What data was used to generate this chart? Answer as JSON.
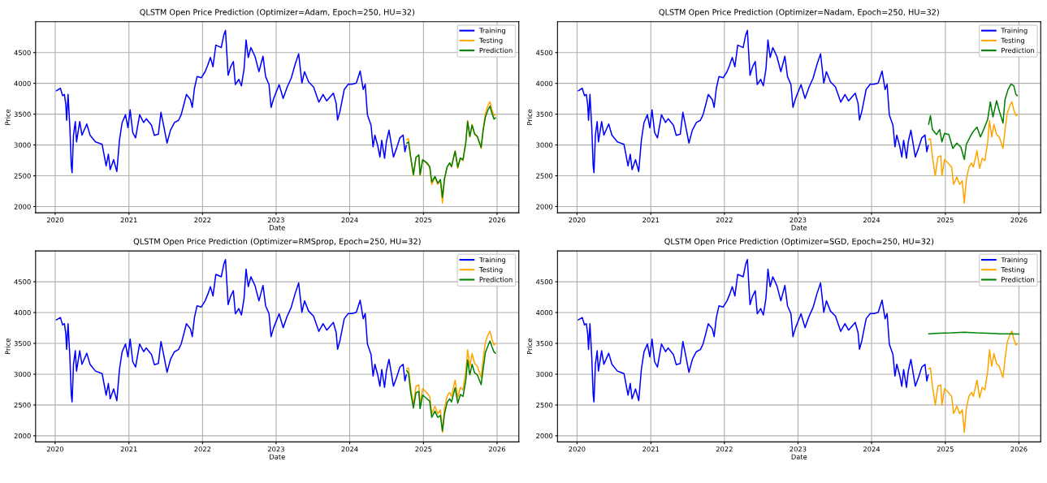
{
  "chart_data": [
    {
      "type": "line",
      "title": "QLSTM Open Price Prediction (Optimizer=Adam, Epoch=250, HU=32)",
      "xlabel": "Date",
      "ylabel": "Price",
      "xlim": [
        "2019-09-26",
        "2026-04-19"
      ],
      "ylim": [
        1900,
        5000
      ],
      "xticks": [
        {
          "value": "2020-01-01",
          "label": "2020"
        },
        {
          "value": "2021-01-01",
          "label": "2021"
        },
        {
          "value": "2022-01-01",
          "label": "2022"
        },
        {
          "value": "2023-01-01",
          "label": "2023"
        },
        {
          "value": "2024-01-01",
          "label": "2024"
        },
        {
          "value": "2025-01-01",
          "label": "2025"
        },
        {
          "value": "2026-01-01",
          "label": "2026"
        }
      ],
      "yticks": [
        2000,
        2500,
        3000,
        3500,
        4000,
        4500
      ],
      "grid": true,
      "legend": "top right",
      "series": [
        {
          "name": "Training",
          "color": "#0000ff",
          "x": [
            "2020-01-07",
            "2020-01-27",
            "2020-02-07",
            "2020-02-16",
            "2020-02-23",
            "2020-02-27",
            "2020-03-05",
            "2020-03-14",
            "2020-03-21",
            "2020-03-25",
            "2020-04-01",
            "2020-04-10",
            "2020-04-16",
            "2020-05-02",
            "2020-05-13",
            "2020-06-06",
            "2020-06-22",
            "2020-07-19",
            "2020-08-21",
            "2020-09-10",
            "2020-09-21",
            "2020-09-30",
            "2020-10-17",
            "2020-11-02",
            "2020-11-15",
            "2020-11-28",
            "2020-12-15",
            "2020-12-27",
            "2021-01-07",
            "2021-01-20",
            "2021-02-03",
            "2021-02-23",
            "2021-03-15",
            "2021-03-28",
            "2021-04-23",
            "2021-05-07",
            "2021-05-27",
            "2021-06-09",
            "2021-06-22",
            "2021-07-09",
            "2021-07-26",
            "2021-08-15",
            "2021-09-04",
            "2021-09-17",
            "2021-09-30",
            "2021-10-13",
            "2021-11-02",
            "2021-11-11",
            "2021-11-22",
            "2021-12-05",
            "2021-12-26",
            "2022-01-14",
            "2022-01-27",
            "2022-02-09",
            "2022-02-22",
            "2022-03-08",
            "2022-03-22",
            "2022-04-04",
            "2022-04-17",
            "2022-04-25",
            "2022-05-08",
            "2022-05-21",
            "2022-06-03",
            "2022-06-13",
            "2022-06-30",
            "2022-07-13",
            "2022-07-26",
            "2022-08-05",
            "2022-08-16",
            "2022-08-29",
            "2022-09-18",
            "2022-10-08",
            "2022-10-28",
            "2022-11-10",
            "2022-11-27",
            "2022-12-07",
            "2022-12-20",
            "2023-01-16",
            "2023-02-05",
            "2023-02-25",
            "2023-03-17",
            "2023-04-06",
            "2023-04-23",
            "2023-05-09",
            "2023-05-22",
            "2023-06-11",
            "2023-07-06",
            "2023-08-01",
            "2023-08-22",
            "2023-09-09",
            "2023-10-12",
            "2023-10-26",
            "2023-11-02",
            "2023-11-14",
            "2023-12-05",
            "2023-12-25",
            "2024-01-14",
            "2024-02-03",
            "2024-02-22",
            "2024-03-08",
            "2024-03-18",
            "2024-03-29",
            "2024-04-16",
            "2024-04-26",
            "2024-05-05",
            "2024-05-19",
            "2024-05-30",
            "2024-06-08",
            "2024-06-22",
            "2024-07-01",
            "2024-07-14",
            "2024-08-05",
            "2024-08-21",
            "2024-09-06",
            "2024-09-22",
            "2024-10-01",
            "2024-10-08"
          ],
          "values": [
            3880,
            3920,
            3800,
            3820,
            3650,
            3400,
            3820,
            3280,
            2660,
            2550,
            3160,
            3380,
            3050,
            3380,
            3160,
            3340,
            3160,
            3050,
            3010,
            2660,
            2850,
            2600,
            2760,
            2570,
            3075,
            3360,
            3490,
            3280,
            3570,
            3200,
            3115,
            3490,
            3365,
            3425,
            3320,
            3155,
            3175,
            3530,
            3320,
            3030,
            3240,
            3365,
            3400,
            3490,
            3650,
            3820,
            3735,
            3610,
            3920,
            4110,
            4090,
            4190,
            4295,
            4420,
            4270,
            4620,
            4600,
            4580,
            4790,
            4860,
            4130,
            4270,
            4355,
            3980,
            4065,
            3960,
            4230,
            4705,
            4420,
            4580,
            4440,
            4190,
            4440,
            4110,
            3980,
            3610,
            3755,
            3980,
            3755,
            3940,
            4085,
            4315,
            4480,
            4005,
            4190,
            4025,
            3940,
            3695,
            3820,
            3715,
            3840,
            3675,
            3405,
            3550,
            3900,
            3985,
            3985,
            4005,
            4200,
            3900,
            3985,
            3490,
            3320,
            2970,
            3160,
            2990,
            2805,
            3075,
            2785,
            3050,
            3240,
            2805,
            2950,
            3115,
            3160,
            2890,
            2990
          ]
        },
        {
          "name": "Testing",
          "color": "#ffa500",
          "x": [
            "2024-10-10",
            "2024-10-19",
            "2024-10-29",
            "2024-11-12",
            "2024-11-25",
            "2024-12-09",
            "2024-12-15",
            "2024-12-28",
            "2025-01-15",
            "2025-02-01",
            "2025-02-11",
            "2025-02-27",
            "2025-03-13",
            "2025-03-26",
            "2025-04-05",
            "2025-04-15",
            "2025-04-28",
            "2025-05-11",
            "2025-05-20",
            "2025-06-07",
            "2025-06-20",
            "2025-07-03",
            "2025-07-16",
            "2025-07-30",
            "2025-08-08",
            "2025-08-19",
            "2025-08-30",
            "2025-09-12",
            "2025-09-25",
            "2025-10-14",
            "2025-10-24",
            "2025-11-04",
            "2025-11-17",
            "2025-11-27",
            "2025-12-06",
            "2025-12-17",
            "2025-12-24"
          ],
          "values": [
            3090,
            3100,
            2805,
            2500,
            2805,
            2825,
            2500,
            2765,
            2705,
            2640,
            2360,
            2480,
            2360,
            2420,
            2055,
            2440,
            2640,
            2705,
            2640,
            2905,
            2620,
            2785,
            2745,
            3050,
            3395,
            3130,
            3335,
            3170,
            3130,
            2945,
            3250,
            3515,
            3640,
            3700,
            3575,
            3475,
            3495
          ]
        },
        {
          "name": "Prediction",
          "color": "#008000",
          "x": [
            "2024-10-10",
            "2024-10-19",
            "2024-10-29",
            "2024-11-12",
            "2024-11-25",
            "2024-12-09",
            "2024-12-15",
            "2024-12-28",
            "2025-01-15",
            "2025-02-01",
            "2025-02-11",
            "2025-02-27",
            "2025-03-13",
            "2025-03-26",
            "2025-04-05",
            "2025-04-15",
            "2025-04-28",
            "2025-05-11",
            "2025-05-20",
            "2025-06-07",
            "2025-06-20",
            "2025-07-03",
            "2025-07-16",
            "2025-07-30",
            "2025-08-08",
            "2025-08-19",
            "2025-08-30",
            "2025-09-12",
            "2025-09-25",
            "2025-10-14",
            "2025-10-24",
            "2025-11-04",
            "2025-11-17",
            "2025-11-27",
            "2025-12-06",
            "2025-12-17",
            "2025-12-24"
          ],
          "values": [
            3030,
            3050,
            2820,
            2520,
            2800,
            2840,
            2520,
            2760,
            2720,
            2650,
            2400,
            2490,
            2380,
            2440,
            2150,
            2450,
            2640,
            2710,
            2650,
            2900,
            2640,
            2790,
            2760,
            3040,
            3380,
            3140,
            3320,
            3180,
            3140,
            2960,
            3240,
            3450,
            3570,
            3630,
            3520,
            3420,
            3440
          ]
        }
      ]
    },
    {
      "type": "line",
      "title": "QLSTM Open Price Prediction (Optimizer=Nadam, Epoch=250, HU=32)",
      "xlabel": "Date",
      "ylabel": "Price",
      "xlim": [
        "2019-09-26",
        "2026-04-19"
      ],
      "ylim": [
        1900,
        5000
      ],
      "xticks": [
        {
          "value": "2020-01-01",
          "label": "2020"
        },
        {
          "value": "2021-01-01",
          "label": "2021"
        },
        {
          "value": "2022-01-01",
          "label": "2022"
        },
        {
          "value": "2023-01-01",
          "label": "2023"
        },
        {
          "value": "2024-01-01",
          "label": "2024"
        },
        {
          "value": "2025-01-01",
          "label": "2025"
        },
        {
          "value": "2026-01-01",
          "label": "2026"
        }
      ],
      "yticks": [
        2000,
        2500,
        3000,
        3500,
        4000,
        4500
      ],
      "grid": true,
      "legend": "top right",
      "series": [
        {
          "name": "Training",
          "color": "#0000ff",
          "x": [
            "2020-01-07",
            "2020-01-27",
            "2020-02-07",
            "2020-02-16",
            "2020-02-23",
            "2020-02-27",
            "2020-03-05",
            "2020-03-14",
            "2020-03-21",
            "2020-03-25",
            "2020-04-01",
            "2020-04-10",
            "2020-04-16",
            "2020-05-02",
            "2020-05-13",
            "2020-06-06",
            "2020-06-22",
            "2020-07-19",
            "2020-08-21",
            "2020-09-10",
            "2020-09-21",
            "2020-09-30",
            "2020-10-17",
            "2020-11-02",
            "2020-11-15",
            "2020-11-28",
            "2020-12-15",
            "2020-12-27",
            "2021-01-07",
            "2021-01-20",
            "2021-02-03",
            "2021-02-23",
            "2021-03-15",
            "2021-03-28",
            "2021-04-23",
            "2021-05-07",
            "2021-05-27",
            "2021-06-09",
            "2021-06-22",
            "2021-07-09",
            "2021-07-26",
            "2021-08-15",
            "2021-09-04",
            "2021-09-17",
            "2021-09-30",
            "2021-10-13",
            "2021-11-02",
            "2021-11-11",
            "2021-11-22",
            "2021-12-05",
            "2021-12-26",
            "2022-01-14",
            "2022-01-27",
            "2022-02-09",
            "2022-02-22",
            "2022-03-08",
            "2022-03-22",
            "2022-04-04",
            "2022-04-17",
            "2022-04-25",
            "2022-05-08",
            "2022-05-21",
            "2022-06-03",
            "2022-06-13",
            "2022-06-30",
            "2022-07-13",
            "2022-07-26",
            "2022-08-05",
            "2022-08-16",
            "2022-08-29",
            "2022-09-18",
            "2022-10-08",
            "2022-10-28",
            "2022-11-10",
            "2022-11-27",
            "2022-12-07",
            "2022-12-20",
            "2023-01-16",
            "2023-02-05",
            "2023-02-25",
            "2023-03-17",
            "2023-04-06",
            "2023-04-23",
            "2023-05-09",
            "2023-05-22",
            "2023-06-11",
            "2023-07-06",
            "2023-08-01",
            "2023-08-22",
            "2023-09-09",
            "2023-10-12",
            "2023-10-26",
            "2023-11-02",
            "2023-11-14",
            "2023-12-05",
            "2023-12-25",
            "2024-01-14",
            "2024-02-03",
            "2024-02-22",
            "2024-03-08",
            "2024-03-18",
            "2024-03-29",
            "2024-04-16",
            "2024-04-26",
            "2024-05-05",
            "2024-05-19",
            "2024-05-30",
            "2024-06-08",
            "2024-06-22",
            "2024-07-01",
            "2024-07-14",
            "2024-08-05",
            "2024-08-21",
            "2024-09-06",
            "2024-09-22",
            "2024-10-01",
            "2024-10-08"
          ],
          "values": [
            3880,
            3920,
            3800,
            3820,
            3650,
            3400,
            3820,
            3280,
            2660,
            2550,
            3160,
            3380,
            3050,
            3380,
            3160,
            3340,
            3160,
            3050,
            3010,
            2660,
            2850,
            2600,
            2760,
            2570,
            3075,
            3360,
            3490,
            3280,
            3570,
            3200,
            3115,
            3490,
            3365,
            3425,
            3320,
            3155,
            3175,
            3530,
            3320,
            3030,
            3240,
            3365,
            3400,
            3490,
            3650,
            3820,
            3735,
            3610,
            3920,
            4110,
            4090,
            4190,
            4295,
            4420,
            4270,
            4620,
            4600,
            4580,
            4790,
            4860,
            4130,
            4270,
            4355,
            3980,
            4065,
            3960,
            4230,
            4705,
            4420,
            4580,
            4440,
            4190,
            4440,
            4110,
            3980,
            3610,
            3755,
            3980,
            3755,
            3940,
            4085,
            4315,
            4480,
            4005,
            4190,
            4025,
            3940,
            3695,
            3820,
            3715,
            3840,
            3675,
            3405,
            3550,
            3900,
            3985,
            3985,
            4005,
            4200,
            3900,
            3985,
            3490,
            3320,
            2970,
            3160,
            2990,
            2805,
            3075,
            2785,
            3050,
            3240,
            2805,
            2950,
            3115,
            3160,
            2890,
            2990
          ]
        },
        {
          "name": "Testing",
          "color": "#ffa500",
          "x": [
            "2024-10-10",
            "2024-10-19",
            "2024-10-29",
            "2024-11-12",
            "2024-11-25",
            "2024-12-09",
            "2024-12-15",
            "2024-12-28",
            "2025-01-15",
            "2025-02-01",
            "2025-02-11",
            "2025-02-27",
            "2025-03-13",
            "2025-03-26",
            "2025-04-05",
            "2025-04-15",
            "2025-04-28",
            "2025-05-11",
            "2025-05-20",
            "2025-06-07",
            "2025-06-20",
            "2025-07-03",
            "2025-07-16",
            "2025-07-30",
            "2025-08-08",
            "2025-08-19",
            "2025-08-30",
            "2025-09-12",
            "2025-09-25",
            "2025-10-14",
            "2025-10-24",
            "2025-11-04",
            "2025-11-17",
            "2025-11-27",
            "2025-12-06",
            "2025-12-17",
            "2025-12-24"
          ],
          "values": [
            3090,
            3100,
            2805,
            2500,
            2805,
            2825,
            2500,
            2765,
            2705,
            2640,
            2360,
            2480,
            2360,
            2420,
            2055,
            2440,
            2640,
            2705,
            2640,
            2905,
            2620,
            2785,
            2745,
            3050,
            3395,
            3130,
            3335,
            3170,
            3130,
            2945,
            3250,
            3515,
            3640,
            3700,
            3575,
            3475,
            3495
          ]
        },
        {
          "name": "Prediction",
          "color": "#008000",
          "x": [
            "2024-10-10",
            "2024-10-19",
            "2024-10-29",
            "2024-11-18",
            "2024-12-04",
            "2024-12-15",
            "2024-12-28",
            "2025-01-18",
            "2025-02-07",
            "2025-02-27",
            "2025-03-19",
            "2025-04-05",
            "2025-04-15",
            "2025-05-04",
            "2025-05-17",
            "2025-06-07",
            "2025-06-24",
            "2025-07-10",
            "2025-07-30",
            "2025-08-12",
            "2025-08-25",
            "2025-09-12",
            "2025-09-27",
            "2025-10-14",
            "2025-10-24",
            "2025-11-08",
            "2025-11-22",
            "2025-12-06",
            "2025-12-17",
            "2025-12-24"
          ],
          "values": [
            3335,
            3475,
            3250,
            3170,
            3250,
            3050,
            3190,
            3170,
            2945,
            3030,
            2965,
            2765,
            3010,
            3130,
            3210,
            3290,
            3130,
            3250,
            3415,
            3700,
            3455,
            3720,
            3535,
            3355,
            3740,
            3900,
            3985,
            3965,
            3820,
            3800
          ]
        }
      ]
    },
    {
      "type": "line",
      "title": "QLSTM Open Price Prediction (Optimizer=RMSprop, Epoch=250, HU=32)",
      "xlabel": "Date",
      "ylabel": "Price",
      "xlim": [
        "2019-09-26",
        "2026-04-19"
      ],
      "ylim": [
        1900,
        5000
      ],
      "xticks": [
        {
          "value": "2020-01-01",
          "label": "2020"
        },
        {
          "value": "2021-01-01",
          "label": "2021"
        },
        {
          "value": "2022-01-01",
          "label": "2022"
        },
        {
          "value": "2023-01-01",
          "label": "2023"
        },
        {
          "value": "2024-01-01",
          "label": "2024"
        },
        {
          "value": "2025-01-01",
          "label": "2025"
        },
        {
          "value": "2026-01-01",
          "label": "2026"
        }
      ],
      "yticks": [
        2000,
        2500,
        3000,
        3500,
        4000,
        4500
      ],
      "grid": true,
      "legend": "top right",
      "series": [
        {
          "name": "Training",
          "color": "#0000ff",
          "x": [
            "2020-01-07",
            "2020-01-27",
            "2020-02-07",
            "2020-02-16",
            "2020-02-23",
            "2020-02-27",
            "2020-03-05",
            "2020-03-14",
            "2020-03-21",
            "2020-03-25",
            "2020-04-01",
            "2020-04-10",
            "2020-04-16",
            "2020-05-02",
            "2020-05-13",
            "2020-06-06",
            "2020-06-22",
            "2020-07-19",
            "2020-08-21",
            "2020-09-10",
            "2020-09-21",
            "2020-09-30",
            "2020-10-17",
            "2020-11-02",
            "2020-11-15",
            "2020-11-28",
            "2020-12-15",
            "2020-12-27",
            "2021-01-07",
            "2021-01-20",
            "2021-02-03",
            "2021-02-23",
            "2021-03-15",
            "2021-03-28",
            "2021-04-23",
            "2021-05-07",
            "2021-05-27",
            "2021-06-09",
            "2021-06-22",
            "2021-07-09",
            "2021-07-26",
            "2021-08-15",
            "2021-09-04",
            "2021-09-17",
            "2021-09-30",
            "2021-10-13",
            "2021-11-02",
            "2021-11-11",
            "2021-11-22",
            "2021-12-05",
            "2021-12-26",
            "2022-01-14",
            "2022-01-27",
            "2022-02-09",
            "2022-02-22",
            "2022-03-08",
            "2022-03-22",
            "2022-04-04",
            "2022-04-17",
            "2022-04-25",
            "2022-05-08",
            "2022-05-21",
            "2022-06-03",
            "2022-06-13",
            "2022-06-30",
            "2022-07-13",
            "2022-07-26",
            "2022-08-05",
            "2022-08-16",
            "2022-08-29",
            "2022-09-18",
            "2022-10-08",
            "2022-10-28",
            "2022-11-10",
            "2022-11-27",
            "2022-12-07",
            "2022-12-20",
            "2023-01-16",
            "2023-02-05",
            "2023-02-25",
            "2023-03-17",
            "2023-04-06",
            "2023-04-23",
            "2023-05-09",
            "2023-05-22",
            "2023-06-11",
            "2023-07-06",
            "2023-08-01",
            "2023-08-22",
            "2023-09-09",
            "2023-10-12",
            "2023-10-26",
            "2023-11-02",
            "2023-11-14",
            "2023-12-05",
            "2023-12-25",
            "2024-01-14",
            "2024-02-03",
            "2024-02-22",
            "2024-03-08",
            "2024-03-18",
            "2024-03-29",
            "2024-04-16",
            "2024-04-26",
            "2024-05-05",
            "2024-05-19",
            "2024-05-30",
            "2024-06-08",
            "2024-06-22",
            "2024-07-01",
            "2024-07-14",
            "2024-08-05",
            "2024-08-21",
            "2024-09-06",
            "2024-09-22",
            "2024-10-01",
            "2024-10-08"
          ],
          "values": [
            3880,
            3920,
            3800,
            3820,
            3650,
            3400,
            3820,
            3280,
            2660,
            2550,
            3160,
            3380,
            3050,
            3380,
            3160,
            3340,
            3160,
            3050,
            3010,
            2660,
            2850,
            2600,
            2760,
            2570,
            3075,
            3360,
            3490,
            3280,
            3570,
            3200,
            3115,
            3490,
            3365,
            3425,
            3320,
            3155,
            3175,
            3530,
            3320,
            3030,
            3240,
            3365,
            3400,
            3490,
            3650,
            3820,
            3735,
            3610,
            3920,
            4110,
            4090,
            4190,
            4295,
            4420,
            4270,
            4620,
            4600,
            4580,
            4790,
            4860,
            4130,
            4270,
            4355,
            3980,
            4065,
            3960,
            4230,
            4705,
            4420,
            4580,
            4440,
            4190,
            4440,
            4110,
            3980,
            3610,
            3755,
            3980,
            3755,
            3940,
            4085,
            4315,
            4480,
            4005,
            4190,
            4025,
            3940,
            3695,
            3820,
            3715,
            3840,
            3675,
            3405,
            3550,
            3900,
            3985,
            3985,
            4005,
            4200,
            3900,
            3985,
            3490,
            3320,
            2970,
            3160,
            2990,
            2805,
            3075,
            2785,
            3050,
            3240,
            2805,
            2950,
            3115,
            3160,
            2890,
            2990
          ]
        },
        {
          "name": "Testing",
          "color": "#ffa500",
          "x": [
            "2024-10-10",
            "2024-10-19",
            "2024-10-29",
            "2024-11-12",
            "2024-11-25",
            "2024-12-09",
            "2024-12-15",
            "2024-12-28",
            "2025-01-15",
            "2025-02-01",
            "2025-02-11",
            "2025-02-27",
            "2025-03-13",
            "2025-03-26",
            "2025-04-05",
            "2025-04-15",
            "2025-04-28",
            "2025-05-11",
            "2025-05-20",
            "2025-06-07",
            "2025-06-20",
            "2025-07-03",
            "2025-07-16",
            "2025-07-30",
            "2025-08-08",
            "2025-08-19",
            "2025-08-30",
            "2025-09-12",
            "2025-09-25",
            "2025-10-14",
            "2025-10-24",
            "2025-11-04",
            "2025-11-17",
            "2025-11-27",
            "2025-12-06",
            "2025-12-17",
            "2025-12-24"
          ],
          "values": [
            3090,
            3100,
            2805,
            2500,
            2805,
            2825,
            2500,
            2765,
            2705,
            2640,
            2360,
            2480,
            2360,
            2420,
            2055,
            2440,
            2640,
            2705,
            2640,
            2905,
            2620,
            2785,
            2745,
            3050,
            3395,
            3130,
            3335,
            3170,
            3130,
            2945,
            3250,
            3515,
            3640,
            3700,
            3575,
            3475,
            3495
          ]
        },
        {
          "name": "Prediction",
          "color": "#008000",
          "x": [
            "2024-10-10",
            "2024-10-19",
            "2024-10-29",
            "2024-11-12",
            "2024-11-25",
            "2024-12-09",
            "2024-12-15",
            "2024-12-28",
            "2025-01-15",
            "2025-02-01",
            "2025-02-11",
            "2025-02-27",
            "2025-03-13",
            "2025-03-26",
            "2025-04-05",
            "2025-04-15",
            "2025-04-28",
            "2025-05-11",
            "2025-05-20",
            "2025-06-07",
            "2025-06-20",
            "2025-07-03",
            "2025-07-16",
            "2025-07-30",
            "2025-08-08",
            "2025-08-19",
            "2025-08-30",
            "2025-09-12",
            "2025-09-25",
            "2025-10-14",
            "2025-10-24",
            "2025-11-04",
            "2025-11-17",
            "2025-11-27",
            "2025-12-06",
            "2025-12-17",
            "2025-12-24"
          ],
          "values": [
            3060,
            3010,
            2720,
            2450,
            2700,
            2720,
            2440,
            2660,
            2610,
            2560,
            2300,
            2400,
            2300,
            2330,
            2080,
            2350,
            2540,
            2600,
            2550,
            2780,
            2530,
            2670,
            2640,
            2900,
            3230,
            2990,
            3160,
            3020,
            2990,
            2830,
            3080,
            3350,
            3460,
            3540,
            3450,
            3360,
            3340
          ]
        }
      ]
    },
    {
      "type": "line",
      "title": "QLSTM Open Price Prediction (Optimizer=SGD, Epoch=250, HU=32)",
      "xlabel": "Date",
      "ylabel": "Price",
      "xlim": [
        "2019-09-26",
        "2026-04-19"
      ],
      "ylim": [
        1900,
        5000
      ],
      "xticks": [
        {
          "value": "2020-01-01",
          "label": "2020"
        },
        {
          "value": "2021-01-01",
          "label": "2021"
        },
        {
          "value": "2022-01-01",
          "label": "2022"
        },
        {
          "value": "2023-01-01",
          "label": "2023"
        },
        {
          "value": "2024-01-01",
          "label": "2024"
        },
        {
          "value": "2025-01-01",
          "label": "2025"
        },
        {
          "value": "2026-01-01",
          "label": "2026"
        }
      ],
      "yticks": [
        2000,
        2500,
        3000,
        3500,
        4000,
        4500
      ],
      "grid": true,
      "legend": "top right",
      "series": [
        {
          "name": "Training",
          "color": "#0000ff",
          "x": [
            "2020-01-07",
            "2020-01-27",
            "2020-02-07",
            "2020-02-16",
            "2020-02-23",
            "2020-02-27",
            "2020-03-05",
            "2020-03-14",
            "2020-03-21",
            "2020-03-25",
            "2020-04-01",
            "2020-04-10",
            "2020-04-16",
            "2020-05-02",
            "2020-05-13",
            "2020-06-06",
            "2020-06-22",
            "2020-07-19",
            "2020-08-21",
            "2020-09-10",
            "2020-09-21",
            "2020-09-30",
            "2020-10-17",
            "2020-11-02",
            "2020-11-15",
            "2020-11-28",
            "2020-12-15",
            "2020-12-27",
            "2021-01-07",
            "2021-01-20",
            "2021-02-03",
            "2021-02-23",
            "2021-03-15",
            "2021-03-28",
            "2021-04-23",
            "2021-05-07",
            "2021-05-27",
            "2021-06-09",
            "2021-06-22",
            "2021-07-09",
            "2021-07-26",
            "2021-08-15",
            "2021-09-04",
            "2021-09-17",
            "2021-09-30",
            "2021-10-13",
            "2021-11-02",
            "2021-11-11",
            "2021-11-22",
            "2021-12-05",
            "2021-12-26",
            "2022-01-14",
            "2022-01-27",
            "2022-02-09",
            "2022-02-22",
            "2022-03-08",
            "2022-03-22",
            "2022-04-04",
            "2022-04-17",
            "2022-04-25",
            "2022-05-08",
            "2022-05-21",
            "2022-06-03",
            "2022-06-13",
            "2022-06-30",
            "2022-07-13",
            "2022-07-26",
            "2022-08-05",
            "2022-08-16",
            "2022-08-29",
            "2022-09-18",
            "2022-10-08",
            "2022-10-28",
            "2022-11-10",
            "2022-11-27",
            "2022-12-07",
            "2022-12-20",
            "2023-01-16",
            "2023-02-05",
            "2023-02-25",
            "2023-03-17",
            "2023-04-06",
            "2023-04-23",
            "2023-05-09",
            "2023-05-22",
            "2023-06-11",
            "2023-07-06",
            "2023-08-01",
            "2023-08-22",
            "2023-09-09",
            "2023-10-12",
            "2023-10-26",
            "2023-11-02",
            "2023-11-14",
            "2023-12-05",
            "2023-12-25",
            "2024-01-14",
            "2024-02-03",
            "2024-02-22",
            "2024-03-08",
            "2024-03-18",
            "2024-03-29",
            "2024-04-16",
            "2024-04-26",
            "2024-05-05",
            "2024-05-19",
            "2024-05-30",
            "2024-06-08",
            "2024-06-22",
            "2024-07-01",
            "2024-07-14",
            "2024-08-05",
            "2024-08-21",
            "2024-09-06",
            "2024-09-22",
            "2024-10-01",
            "2024-10-08"
          ],
          "values": [
            3880,
            3920,
            3800,
            3820,
            3650,
            3400,
            3820,
            3280,
            2660,
            2550,
            3160,
            3380,
            3050,
            3380,
            3160,
            3340,
            3160,
            3050,
            3010,
            2660,
            2850,
            2600,
            2760,
            2570,
            3075,
            3360,
            3490,
            3280,
            3570,
            3200,
            3115,
            3490,
            3365,
            3425,
            3320,
            3155,
            3175,
            3530,
            3320,
            3030,
            3240,
            3365,
            3400,
            3490,
            3650,
            3820,
            3735,
            3610,
            3920,
            4110,
            4090,
            4190,
            4295,
            4420,
            4270,
            4620,
            4600,
            4580,
            4790,
            4860,
            4130,
            4270,
            4355,
            3980,
            4065,
            3960,
            4230,
            4705,
            4420,
            4580,
            4440,
            4190,
            4440,
            4110,
            3980,
            3610,
            3755,
            3980,
            3755,
            3940,
            4085,
            4315,
            4480,
            4005,
            4190,
            4025,
            3940,
            3695,
            3820,
            3715,
            3840,
            3675,
            3405,
            3550,
            3900,
            3985,
            3985,
            4005,
            4200,
            3900,
            3985,
            3490,
            3320,
            2970,
            3160,
            2990,
            2805,
            3075,
            2785,
            3050,
            3240,
            2805,
            2950,
            3115,
            3160,
            2890,
            2990
          ]
        },
        {
          "name": "Testing",
          "color": "#ffa500",
          "x": [
            "2024-10-10",
            "2024-10-19",
            "2024-10-29",
            "2024-11-12",
            "2024-11-25",
            "2024-12-09",
            "2024-12-15",
            "2024-12-28",
            "2025-01-15",
            "2025-02-01",
            "2025-02-11",
            "2025-02-27",
            "2025-03-13",
            "2025-03-26",
            "2025-04-05",
            "2025-04-15",
            "2025-04-28",
            "2025-05-11",
            "2025-05-20",
            "2025-06-07",
            "2025-06-20",
            "2025-07-03",
            "2025-07-16",
            "2025-07-30",
            "2025-08-08",
            "2025-08-19",
            "2025-08-30",
            "2025-09-12",
            "2025-09-25",
            "2025-10-14",
            "2025-10-24",
            "2025-11-04",
            "2025-11-17",
            "2025-11-27",
            "2025-12-06",
            "2025-12-17",
            "2025-12-24"
          ],
          "values": [
            3090,
            3100,
            2805,
            2500,
            2805,
            2825,
            2500,
            2765,
            2705,
            2640,
            2360,
            2480,
            2360,
            2420,
            2055,
            2440,
            2640,
            2705,
            2640,
            2905,
            2620,
            2785,
            2745,
            3050,
            3395,
            3130,
            3335,
            3170,
            3130,
            2945,
            3250,
            3515,
            3640,
            3700,
            3575,
            3475,
            3495
          ]
        },
        {
          "name": "Prediction",
          "color": "#008000",
          "x": [
            "2024-10-10",
            "2024-12-01",
            "2025-02-01",
            "2025-04-05",
            "2025-06-01",
            "2025-08-01",
            "2025-10-01",
            "2025-11-15",
            "2025-12-31"
          ],
          "values": [
            3655,
            3665,
            3670,
            3680,
            3670,
            3665,
            3655,
            3655,
            3650
          ]
        }
      ]
    }
  ]
}
